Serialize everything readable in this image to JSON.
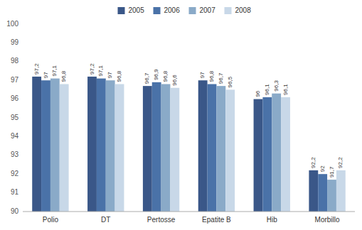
{
  "chart_data": {
    "type": "bar",
    "categories": [
      "Polio",
      "DT",
      "Pertosse",
      "Epatite B",
      "Hib",
      "Morbillo"
    ],
    "series": [
      {
        "name": "2005",
        "color": "#3A5788",
        "values": [
          97.2,
          97.2,
          96.7,
          97.0,
          96.0,
          92.2
        ],
        "value_labels": [
          "97,2",
          "97,2",
          "96,7",
          "97",
          "96",
          "92,2"
        ]
      },
      {
        "name": "2006",
        "color": "#4A72A8",
        "values": [
          97.0,
          97.1,
          96.9,
          96.8,
          96.1,
          92.0
        ],
        "value_labels": [
          "97",
          "97,1",
          "96,9",
          "96,8",
          "96,1",
          "92"
        ]
      },
      {
        "name": "2007",
        "color": "#8AAAC8",
        "values": [
          97.1,
          97.0,
          96.8,
          96.7,
          96.3,
          91.7
        ],
        "value_labels": [
          "97,1",
          "97",
          "96,8",
          "96,7",
          "96,3",
          "91,7"
        ]
      },
      {
        "name": "2008",
        "color": "#C8D8E8",
        "values": [
          96.8,
          96.8,
          96.6,
          96.5,
          96.1,
          92.2
        ],
        "value_labels": [
          "96,8",
          "96,8",
          "96,6",
          "96,5",
          "96,1",
          "92,2"
        ]
      }
    ],
    "ylim": [
      90,
      100
    ],
    "yticks": [
      90,
      91,
      92,
      93,
      94,
      95,
      96,
      97,
      98,
      99,
      100
    ],
    "grid": false,
    "legend": "top",
    "data_labels": true
  }
}
